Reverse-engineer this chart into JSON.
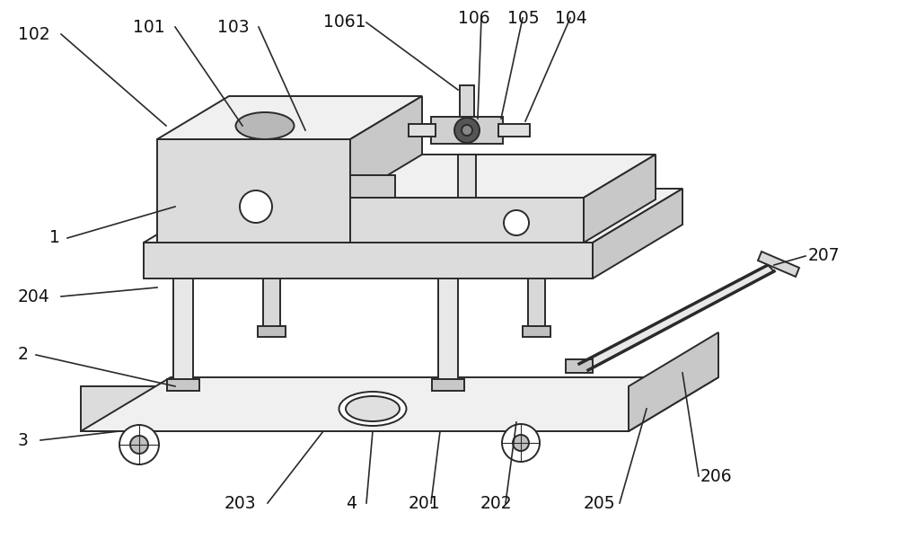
{
  "bg_color": "#ffffff",
  "lc": "#2a2a2a",
  "lw": 1.4,
  "fills": {
    "front": "#dcdcdc",
    "top": "#f0f0f0",
    "right": "#c8c8c8",
    "white": "#ffffff",
    "dark": "#404040"
  }
}
